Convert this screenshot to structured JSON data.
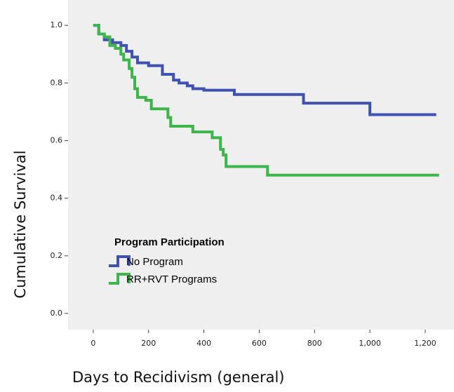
{
  "chart_data": {
    "type": "step",
    "y_label": "Cumulative Survival",
    "x_label": "Days to Recidivism (general)",
    "legend_title": "Program Participation",
    "series": [
      {
        "name": "No Program",
        "color": "#3f52b3",
        "x": [
          0,
          20,
          40,
          70,
          100,
          120,
          140,
          160,
          200,
          250,
          290,
          310,
          340,
          360,
          400,
          510,
          760,
          1000,
          1240
        ],
        "values": [
          1.0,
          0.97,
          0.95,
          0.94,
          0.93,
          0.91,
          0.89,
          0.87,
          0.86,
          0.83,
          0.81,
          0.8,
          0.79,
          0.78,
          0.775,
          0.76,
          0.73,
          0.69,
          0.69
        ]
      },
      {
        "name": "RR+RVT Programs",
        "color": "#3cb54a",
        "x": [
          0,
          20,
          40,
          60,
          80,
          100,
          110,
          130,
          140,
          150,
          160,
          190,
          210,
          270,
          280,
          360,
          430,
          460,
          470,
          480,
          630,
          1250
        ],
        "values": [
          1.0,
          0.97,
          0.96,
          0.93,
          0.92,
          0.9,
          0.88,
          0.85,
          0.82,
          0.78,
          0.75,
          0.74,
          0.71,
          0.68,
          0.65,
          0.63,
          0.61,
          0.57,
          0.55,
          0.51,
          0.48,
          0.48
        ]
      }
    ],
    "xlim": [
      -91,
      1304
    ],
    "ylim": [
      -0.056,
      1.088
    ],
    "xticks": [
      0,
      200,
      400,
      600,
      800,
      {
        "value": 1000,
        "label": "1,000"
      },
      {
        "value": 1200,
        "label": "1,200"
      }
    ],
    "yticks": [
      {
        "value": 0,
        "label": "0.0"
      },
      0.2,
      0.4,
      0.6,
      0.8,
      {
        "value": 1,
        "label": "1.0"
      }
    ],
    "grid": false
  }
}
